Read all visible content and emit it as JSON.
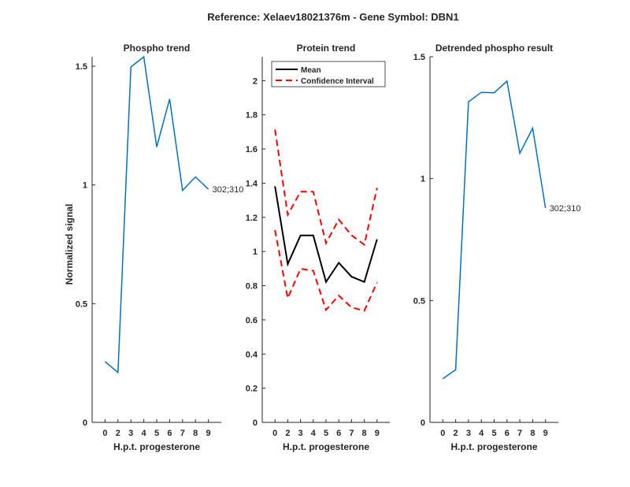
{
  "chart_data": {
    "title": "Reference:  Xelaev18021376m - Gene Symbol:  DBN1",
    "ylabel": "Normalized signal",
    "panels": [
      {
        "type": "line",
        "title": "Phospho trend",
        "xlabel": "H.p.t. progesterone",
        "categories": [
          "0",
          "2",
          "3",
          "4",
          "5",
          "6",
          "7",
          "8",
          "9"
        ],
        "ylim": [
          0,
          1.54
        ],
        "yticks": [
          0,
          0.5,
          1,
          1.5
        ],
        "ytick_labels": [
          "0",
          "0.5",
          "1",
          "1.5"
        ],
        "series": [
          {
            "name": "302;310",
            "color": "#0072BD",
            "dash": false,
            "values": [
              0.256,
              0.21,
              1.497,
              1.54,
              1.16,
              1.362,
              0.977,
              1.034,
              0.982
            ]
          }
        ],
        "end_label": "302;310"
      },
      {
        "type": "line",
        "title": "Protein trend",
        "xlabel": "H.p.t. progesterone",
        "categories": [
          "0",
          "2",
          "3",
          "4",
          "5",
          "6",
          "7",
          "8",
          "9"
        ],
        "ylim": [
          0,
          2.14
        ],
        "yticks": [
          0,
          0.2,
          0.4,
          0.6,
          0.8,
          1,
          1.2,
          1.4,
          1.6,
          1.8,
          2
        ],
        "ytick_labels": [
          "0",
          "0.2",
          "0.4",
          "0.6",
          "0.8",
          "1",
          "1.2",
          "1.4",
          "1.6",
          "1.8",
          "2"
        ],
        "series": [
          {
            "name": "Mean",
            "color": "#000000",
            "dash": false,
            "values": [
              1.382,
              0.926,
              1.094,
              1.094,
              0.822,
              0.934,
              0.853,
              0.822,
              1.072
            ]
          },
          {
            "name": "Confidence Interval",
            "color": "#FF0000",
            "dash": true,
            "values": [
              1.714,
              1.215,
              1.35,
              1.35,
              1.049,
              1.187,
              1.095,
              1.04,
              1.372
            ]
          },
          {
            "name": "Confidence Interval (lower)",
            "color": "#FF0000",
            "dash": true,
            "values": [
              1.126,
              0.727,
              0.899,
              0.888,
              0.658,
              0.742,
              0.673,
              0.653,
              0.819
            ]
          }
        ],
        "legend": {
          "placement": "top-left",
          "entries": [
            "Mean",
            "Confidence Interval"
          ]
        }
      },
      {
        "type": "line",
        "title": "Detrended phospho result",
        "xlabel": "H.p.t. progesterone",
        "categories": [
          "0",
          "2",
          "3",
          "4",
          "5",
          "6",
          "7",
          "8",
          "9"
        ],
        "ylim": [
          0,
          1.5
        ],
        "yticks": [
          0,
          0.5,
          1,
          1.5
        ],
        "ytick_labels": [
          "0",
          "0.5",
          "1",
          "1.5"
        ],
        "series": [
          {
            "name": "302;310",
            "color": "#0072BD",
            "dash": false,
            "values": [
              0.179,
              0.216,
              1.315,
              1.354,
              1.352,
              1.4,
              1.104,
              1.207,
              0.879
            ]
          }
        ],
        "end_label": "302;310"
      }
    ]
  }
}
